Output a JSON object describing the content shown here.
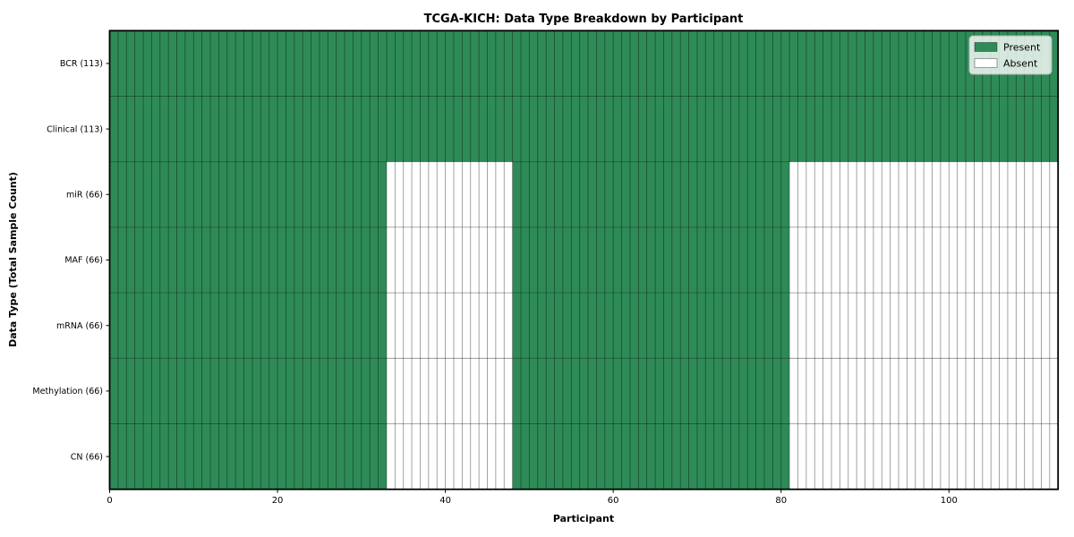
{
  "chart_data": {
    "type": "heatmap",
    "title": "TCGA-KICH: Data Type Breakdown by Participant",
    "xlabel": "Participant",
    "ylabel": "Data Type (Total Sample Count)",
    "x_range": [
      0,
      113
    ],
    "x_ticks": [
      0,
      20,
      40,
      60,
      80,
      100
    ],
    "grid": false,
    "legend_position": "upper-right",
    "legend": [
      {
        "label": "Present",
        "state": "present"
      },
      {
        "label": "Absent",
        "state": "absent"
      }
    ],
    "colors": {
      "present": "#2e8b57",
      "absent": "#ffffff",
      "cell_edge": "rgba(0,0,0,0.45)",
      "spine": "#000000",
      "legend_bg": "rgba(255,255,255,0.8)",
      "legend_border": "#b3b3b3"
    },
    "rows": [
      {
        "label": "BCR (113)",
        "data_type": "BCR",
        "total_samples": 113,
        "segments": [
          {
            "start": 0,
            "end": 113,
            "state": "present"
          }
        ]
      },
      {
        "label": "Clinical (113)",
        "data_type": "Clinical",
        "total_samples": 113,
        "segments": [
          {
            "start": 0,
            "end": 113,
            "state": "present"
          }
        ]
      },
      {
        "label": "miR (66)",
        "data_type": "miR",
        "total_samples": 66,
        "segments": [
          {
            "start": 0,
            "end": 33,
            "state": "present"
          },
          {
            "start": 33,
            "end": 48,
            "state": "absent"
          },
          {
            "start": 48,
            "end": 81,
            "state": "present"
          },
          {
            "start": 81,
            "end": 113,
            "state": "absent"
          }
        ]
      },
      {
        "label": "MAF (66)",
        "data_type": "MAF",
        "total_samples": 66,
        "segments": [
          {
            "start": 0,
            "end": 33,
            "state": "present"
          },
          {
            "start": 33,
            "end": 48,
            "state": "absent"
          },
          {
            "start": 48,
            "end": 81,
            "state": "present"
          },
          {
            "start": 81,
            "end": 113,
            "state": "absent"
          }
        ]
      },
      {
        "label": "mRNA (66)",
        "data_type": "mRNA",
        "total_samples": 66,
        "segments": [
          {
            "start": 0,
            "end": 33,
            "state": "present"
          },
          {
            "start": 33,
            "end": 48,
            "state": "absent"
          },
          {
            "start": 48,
            "end": 81,
            "state": "present"
          },
          {
            "start": 81,
            "end": 113,
            "state": "absent"
          }
        ]
      },
      {
        "label": "Methylation (66)",
        "data_type": "Methylation",
        "total_samples": 66,
        "segments": [
          {
            "start": 0,
            "end": 33,
            "state": "present"
          },
          {
            "start": 33,
            "end": 48,
            "state": "absent"
          },
          {
            "start": 48,
            "end": 81,
            "state": "present"
          },
          {
            "start": 81,
            "end": 113,
            "state": "absent"
          }
        ]
      },
      {
        "label": "CN (66)",
        "data_type": "CN",
        "total_samples": 66,
        "segments": [
          {
            "start": 0,
            "end": 33,
            "state": "present"
          },
          {
            "start": 33,
            "end": 48,
            "state": "absent"
          },
          {
            "start": 48,
            "end": 81,
            "state": "present"
          },
          {
            "start": 81,
            "end": 113,
            "state": "absent"
          }
        ]
      }
    ]
  }
}
